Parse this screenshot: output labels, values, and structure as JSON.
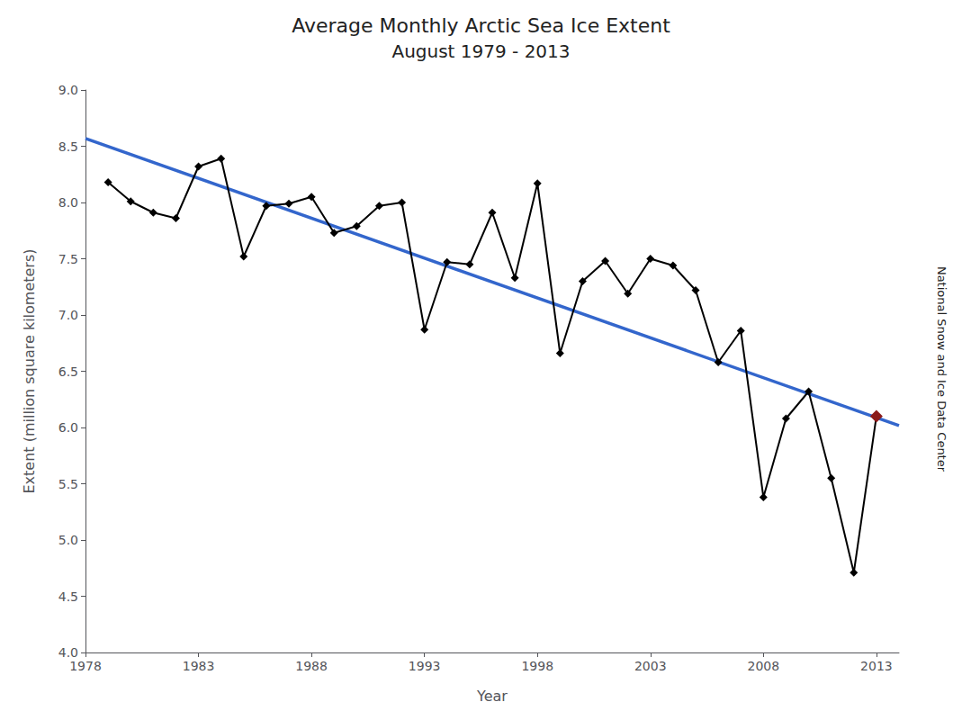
{
  "chart_data": {
    "type": "line",
    "title": "Average Monthly Arctic Sea Ice Extent",
    "subtitle": "August 1979 - 2013",
    "xlabel": "Year",
    "ylabel": "Extent (million square kilometers)",
    "annotations": [
      "National Snow and Ice Data Center"
    ],
    "xlim": [
      1978,
      2014
    ],
    "ylim": [
      4.0,
      9.0
    ],
    "xticks": [
      1978,
      1983,
      1988,
      1993,
      1998,
      2003,
      2008,
      2013
    ],
    "yticks": [
      {
        "value": 4.0,
        "label": "4.0"
      },
      4.5,
      {
        "value": 5.0,
        "label": "5.0"
      },
      5.5,
      {
        "value": 6.0,
        "label": "6.0"
      },
      6.5,
      {
        "value": 7.0,
        "label": "7.0"
      },
      7.5,
      {
        "value": 8.0,
        "label": "8.0"
      },
      8.5,
      {
        "value": 9.0,
        "label": "9.0"
      }
    ],
    "grid": false,
    "x": [
      1979,
      1980,
      1981,
      1982,
      1983,
      1984,
      1985,
      1986,
      1987,
      1988,
      1989,
      1990,
      1991,
      1992,
      1993,
      1994,
      1995,
      1996,
      1997,
      1998,
      1999,
      2000,
      2001,
      2002,
      2003,
      2004,
      2005,
      2006,
      2007,
      2008,
      2009,
      2010,
      2011,
      2012,
      2013
    ],
    "series": [
      {
        "type": "line",
        "color": "#000000",
        "marker": "diamond",
        "values": [
          8.18,
          8.01,
          7.91,
          7.86,
          8.32,
          8.39,
          7.52,
          7.97,
          7.99,
          8.05,
          7.73,
          7.79,
          7.97,
          8.0,
          6.87,
          7.47,
          7.45,
          7.91,
          7.33,
          8.17,
          6.66,
          7.3,
          7.48,
          7.19,
          7.5,
          7.44,
          7.22,
          6.58,
          6.86,
          5.38,
          6.08,
          6.32,
          5.55,
          4.71,
          6.1
        ],
        "colors": [
          "#000000",
          "#000000",
          "#000000",
          "#000000",
          "#000000",
          "#000000",
          "#000000",
          "#000000",
          "#000000",
          "#000000",
          "#000000",
          "#000000",
          "#000000",
          "#000000",
          "#000000",
          "#000000",
          "#000000",
          "#000000",
          "#000000",
          "#000000",
          "#000000",
          "#000000",
          "#000000",
          "#000000",
          "#000000",
          "#000000",
          "#000000",
          "#000000",
          "#000000",
          "#000000",
          "#000000",
          "#000000",
          "#000000",
          "#000000",
          "#8B1A1A"
        ]
      },
      {
        "type": "line",
        "color": "#3366cc",
        "marker": "none",
        "x": [
          1978,
          2014
        ],
        "values": [
          8.56948,
          6.01681
        ]
      }
    ]
  }
}
